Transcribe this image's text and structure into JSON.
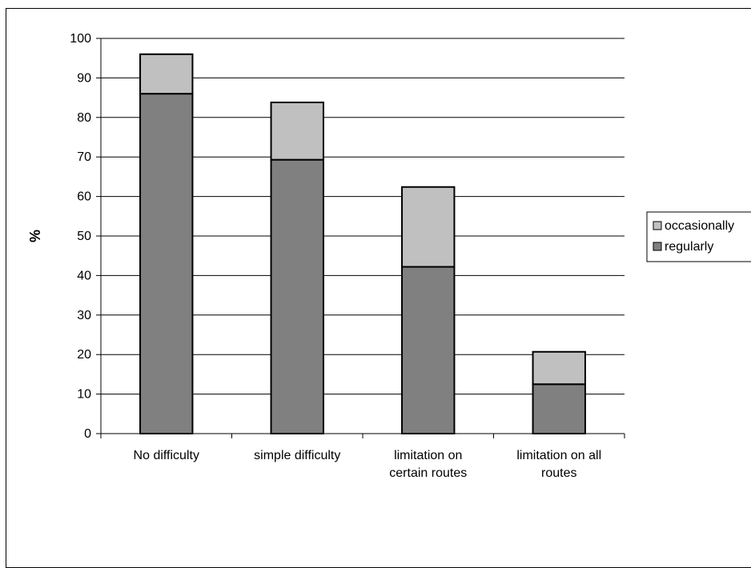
{
  "chart_data": {
    "type": "bar",
    "stacked": true,
    "categories": [
      [
        "No difficulty"
      ],
      [
        "simple difficulty"
      ],
      [
        "limitation on",
        "certain routes"
      ],
      [
        "limitation on all",
        "routes"
      ]
    ],
    "series": [
      {
        "name": "regularly",
        "values": [
          86,
          69.3,
          42.2,
          12.5
        ],
        "color": "#808080"
      },
      {
        "name": "occasionally",
        "values": [
          10,
          14.5,
          20.2,
          8.2
        ],
        "color": "#c0c0c0"
      }
    ],
    "xlabel": "",
    "ylabel": "%",
    "ylim": [
      0,
      100
    ],
    "yticks": [
      0,
      10,
      20,
      30,
      40,
      50,
      60,
      70,
      80,
      90,
      100
    ],
    "grid": true,
    "legend": {
      "placement": "right",
      "order": [
        "occasionally",
        "regularly"
      ]
    }
  }
}
